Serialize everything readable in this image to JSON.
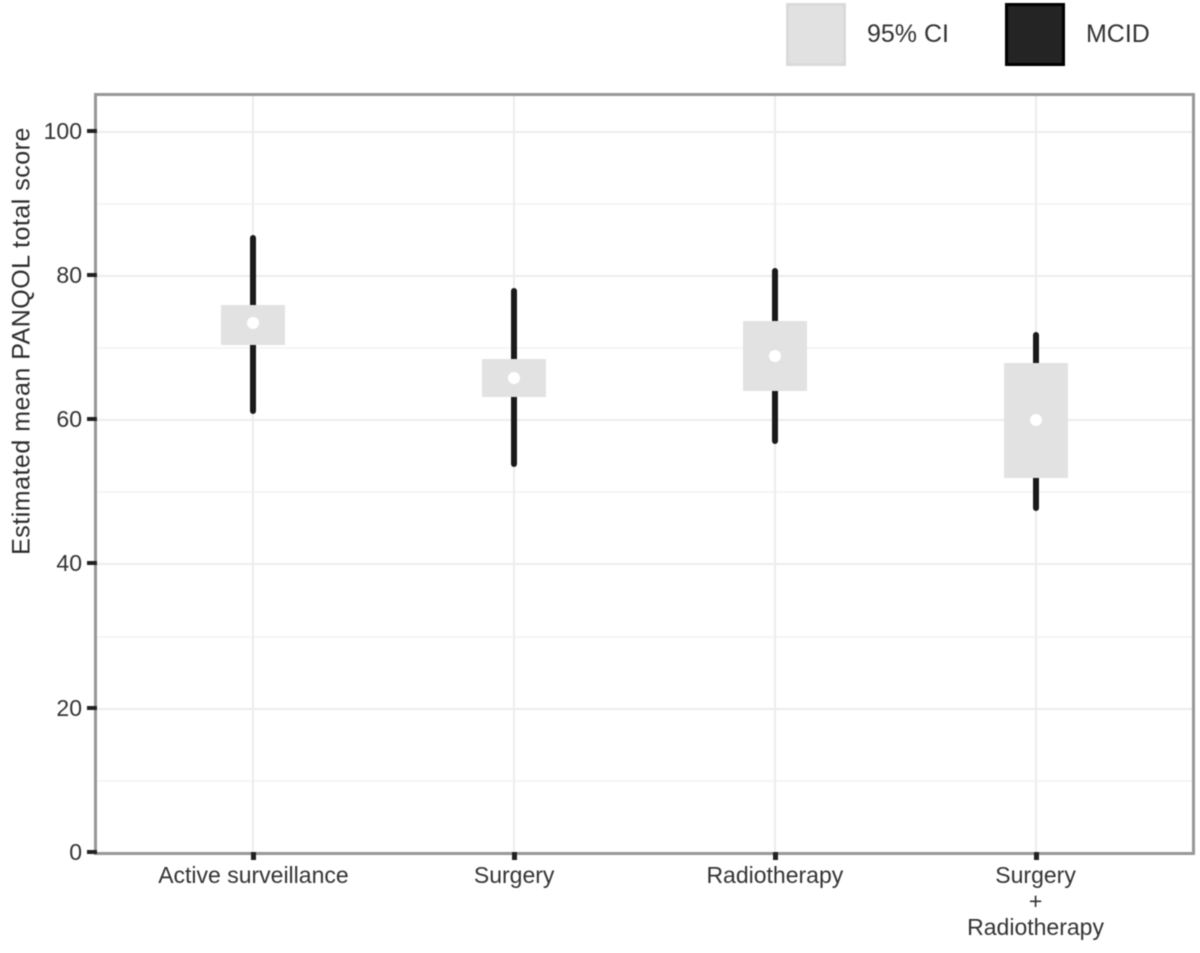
{
  "legend": {
    "items": [
      {
        "name": "ci",
        "label": "95% CI",
        "swatch_color": "#e1e1e1",
        "swatch_border": "#dadada"
      },
      {
        "name": "mcid",
        "label": "MCID",
        "swatch_color": "#242424",
        "swatch_border": "#000000"
      }
    ]
  },
  "chart_data": {
    "type": "pointrange",
    "title": "",
    "xlabel": "",
    "ylabel": "Estimated mean PANQOL total score",
    "ylim": [
      0,
      104.8
    ],
    "yticks": [
      0,
      20,
      40,
      60,
      80,
      100
    ],
    "yticks_minor": [
      10,
      30,
      50,
      70,
      90
    ],
    "grid": "horizontal major+minor, vertical at category centers",
    "legend_position": "top-right",
    "categories": [
      "Active surveillance",
      "Surgery",
      "Radiotherapy",
      "Surgery + Radiotherapy"
    ],
    "category_label_lines": [
      [
        "Active surveillance"
      ],
      [
        "Surgery"
      ],
      [
        "Radiotherapy"
      ],
      [
        "Surgery",
        "+",
        "Radiotherapy"
      ]
    ],
    "points": [
      {
        "category": "Active surveillance",
        "mean": 73.3,
        "ci_low": 70.3,
        "ci_high": 75.8,
        "mcid_low": 60.7,
        "mcid_high": 85.6
      },
      {
        "category": "Surgery",
        "mean": 65.7,
        "ci_low": 63.1,
        "ci_high": 68.4,
        "mcid_low": 53.3,
        "mcid_high": 78.2
      },
      {
        "category": "Radiotherapy",
        "mean": 68.7,
        "ci_low": 63.9,
        "ci_high": 73.6,
        "mcid_low": 56.6,
        "mcid_high": 81.0
      },
      {
        "category": "Surgery + Radiotherapy",
        "mean": 59.9,
        "ci_low": 51.9,
        "ci_high": 67.8,
        "mcid_low": 47.3,
        "mcid_high": 72.1
      }
    ],
    "colors": {
      "ci_box": "#e2e2e2",
      "mcid_line": "#1a1a1a",
      "mean_point": "#ffffff",
      "panel_border": "#979797",
      "grid_major": "#ededed",
      "grid_minor": "#f5f5f5",
      "tick": "#222222",
      "text": "#333333"
    }
  }
}
